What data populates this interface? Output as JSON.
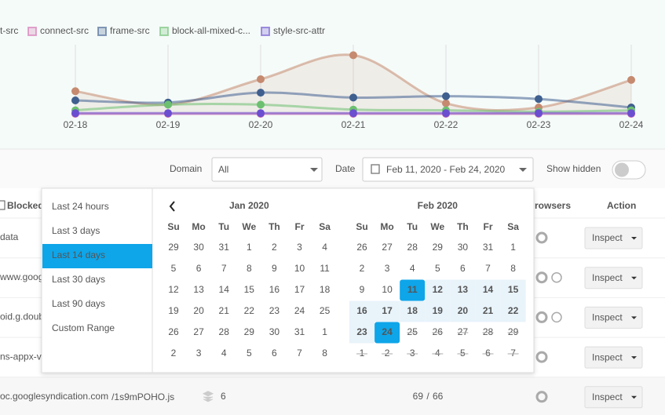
{
  "chart_data": {
    "type": "line",
    "categories": [
      "02-18",
      "02-19",
      "02-20",
      "02-21",
      "02-22",
      "02-23",
      "02-24"
    ],
    "ylim": [
      0,
      100
    ],
    "series": [
      {
        "name": "t-src",
        "color": "#c58a70",
        "values": [
          33,
          14,
          50,
          84,
          16,
          10,
          49
        ]
      },
      {
        "name": "connect-src",
        "color": "#d46fb0",
        "values": [
          1,
          1,
          1,
          1,
          1,
          1,
          1
        ]
      },
      {
        "name": "frame-src",
        "color": "#3f5f8f",
        "values": [
          20,
          17,
          31,
          24,
          26,
          22,
          10
        ]
      },
      {
        "name": "block-all-mixed-c...",
        "color": "#6cc070",
        "values": [
          6,
          14,
          14,
          7,
          6,
          4,
          6
        ]
      },
      {
        "name": "style-src-attr",
        "color": "#6a4fd0",
        "values": [
          2,
          2,
          2,
          2,
          2,
          2,
          2
        ]
      }
    ]
  },
  "toolbar": {
    "domain_label": "Domain",
    "domain_value": "All",
    "date_label": "Date",
    "date_value": "Feb 11, 2020 - Feb 24, 2020",
    "show_hidden": "Show hidden"
  },
  "table": {
    "headers": [
      "Blocked",
      "rowsers",
      "Action"
    ],
    "rows": [
      {
        "name": "data",
        "action": "Inspect"
      },
      {
        "name": "www.goog",
        "action": "Inspect"
      },
      {
        "name": "oid.g.doub",
        "action": "Inspect"
      },
      {
        "name": "ns-appx-v",
        "action": "Inspect"
      },
      {
        "name": "oc.googlesyndication.com",
        "path": "/1s9mPOHO.js",
        "count": "6",
        "ratio_a": "69",
        "ratio_sep": "/",
        "ratio_b": "66",
        "action": "Inspect"
      }
    ]
  },
  "date_picker": {
    "ranges": [
      "Last 24 hours",
      "Last 3 days",
      "Last 14 days",
      "Last 30 days",
      "Last 90 days",
      "Custom Range"
    ],
    "calendars": [
      {
        "title": "Jan 2020",
        "weekdays": [
          "Su",
          "Mo",
          "Tu",
          "We",
          "Th",
          "Fr",
          "Sa"
        ],
        "weeks": [
          [
            "29",
            "30",
            "31",
            "1",
            "2",
            "3",
            "4"
          ],
          [
            "5",
            "6",
            "7",
            "8",
            "9",
            "10",
            "11"
          ],
          [
            "12",
            "13",
            "14",
            "15",
            "16",
            "17",
            "18"
          ],
          [
            "19",
            "20",
            "21",
            "22",
            "23",
            "24",
            "25"
          ],
          [
            "26",
            "27",
            "28",
            "29",
            "30",
            "31",
            "1"
          ],
          [
            "2",
            "3",
            "4",
            "5",
            "6",
            "7",
            "8"
          ]
        ]
      },
      {
        "title": "Feb 2020",
        "weekdays": [
          "Su",
          "Mo",
          "Tu",
          "We",
          "Th",
          "Fr",
          "Sa"
        ],
        "weeks": [
          [
            "26",
            "27",
            "28",
            "29",
            "30",
            "31",
            "1"
          ],
          [
            "2",
            "3",
            "4",
            "5",
            "6",
            "7",
            "8"
          ],
          [
            "9",
            "10",
            "11",
            "12",
            "13",
            "14",
            "15"
          ],
          [
            "16",
            "17",
            "18",
            "19",
            "20",
            "21",
            "22"
          ],
          [
            "23",
            "24",
            "25",
            "26",
            "27",
            "28",
            "29"
          ],
          [
            "1",
            "2",
            "3",
            "4",
            "5",
            "6",
            "7"
          ]
        ]
      }
    ]
  }
}
